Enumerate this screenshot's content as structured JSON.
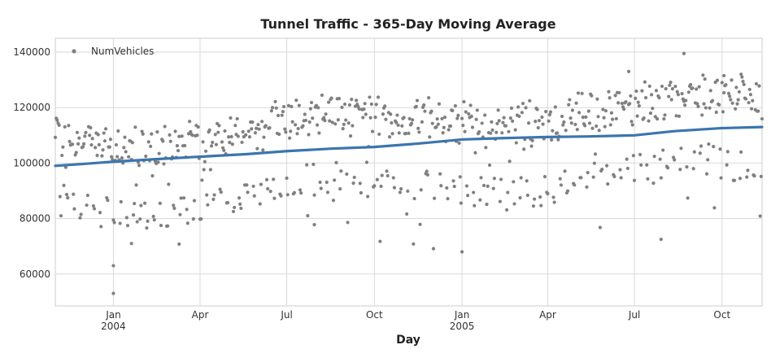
{
  "chart_data": {
    "type": "scatter",
    "title": "Tunnel Traffic - 365-Day Moving Average",
    "xlabel": "Day",
    "ylabel": "",
    "ylim": [
      48500,
      145000
    ],
    "y_ticks": [
      {
        "value": 60000,
        "label": "60000"
      },
      {
        "value": 80000,
        "label": "80000"
      },
      {
        "value": 100000,
        "label": "100000"
      },
      {
        "value": 120000,
        "label": "120000"
      },
      {
        "value": 140000,
        "label": "140000"
      }
    ],
    "x_range_days": [
      0,
      742
    ],
    "x_ticks": [
      {
        "day": 61,
        "label": "Jan",
        "sublabel": "2004"
      },
      {
        "day": 152,
        "label": "Apr",
        "sublabel": ""
      },
      {
        "day": 243,
        "label": "Jul",
        "sublabel": ""
      },
      {
        "day": 335,
        "label": "Oct",
        "sublabel": ""
      },
      {
        "day": 427,
        "label": "Jan",
        "sublabel": "2005"
      },
      {
        "day": 517,
        "label": "Apr",
        "sublabel": ""
      },
      {
        "day": 608,
        "label": "Jul",
        "sublabel": ""
      },
      {
        "day": 700,
        "label": "Oct",
        "sublabel": ""
      }
    ],
    "legend": {
      "label": "NumVehicles",
      "placement": "top-left"
    },
    "series": [
      {
        "name": "NumVehicles",
        "kind": "scatter",
        "color": "#808080",
        "generator": {
          "start_day": 0,
          "end_day": 742,
          "seed": 7
        },
        "notable_points": [
          {
            "day": 61,
            "value": 53000
          },
          {
            "day": 61,
            "value": 63000
          },
          {
            "day": 427,
            "value": 68000
          },
          {
            "day": 636,
            "value": 72500
          },
          {
            "day": 660,
            "value": 139500
          },
          {
            "day": 602,
            "value": 133000
          },
          {
            "day": 702,
            "value": 131500
          },
          {
            "day": 720,
            "value": 132000
          },
          {
            "day": 80,
            "value": 71000
          },
          {
            "day": 130,
            "value": 70800
          },
          {
            "day": 272,
            "value": 77800
          }
        ]
      },
      {
        "name": "365-Day Moving Average",
        "kind": "line",
        "color": "#3b75af",
        "points": [
          {
            "day": 0,
            "value": 99000
          },
          {
            "day": 30,
            "value": 99700
          },
          {
            "day": 61,
            "value": 100500
          },
          {
            "day": 100,
            "value": 101300
          },
          {
            "day": 152,
            "value": 102300
          },
          {
            "day": 200,
            "value": 103200
          },
          {
            "day": 243,
            "value": 104300
          },
          {
            "day": 290,
            "value": 105200
          },
          {
            "day": 335,
            "value": 105800
          },
          {
            "day": 380,
            "value": 107000
          },
          {
            "day": 427,
            "value": 108500
          },
          {
            "day": 470,
            "value": 109000
          },
          {
            "day": 517,
            "value": 109400
          },
          {
            "day": 560,
            "value": 109600
          },
          {
            "day": 608,
            "value": 110000
          },
          {
            "day": 650,
            "value": 111500
          },
          {
            "day": 700,
            "value": 112600
          },
          {
            "day": 742,
            "value": 113000
          }
        ]
      }
    ],
    "grid": true
  }
}
